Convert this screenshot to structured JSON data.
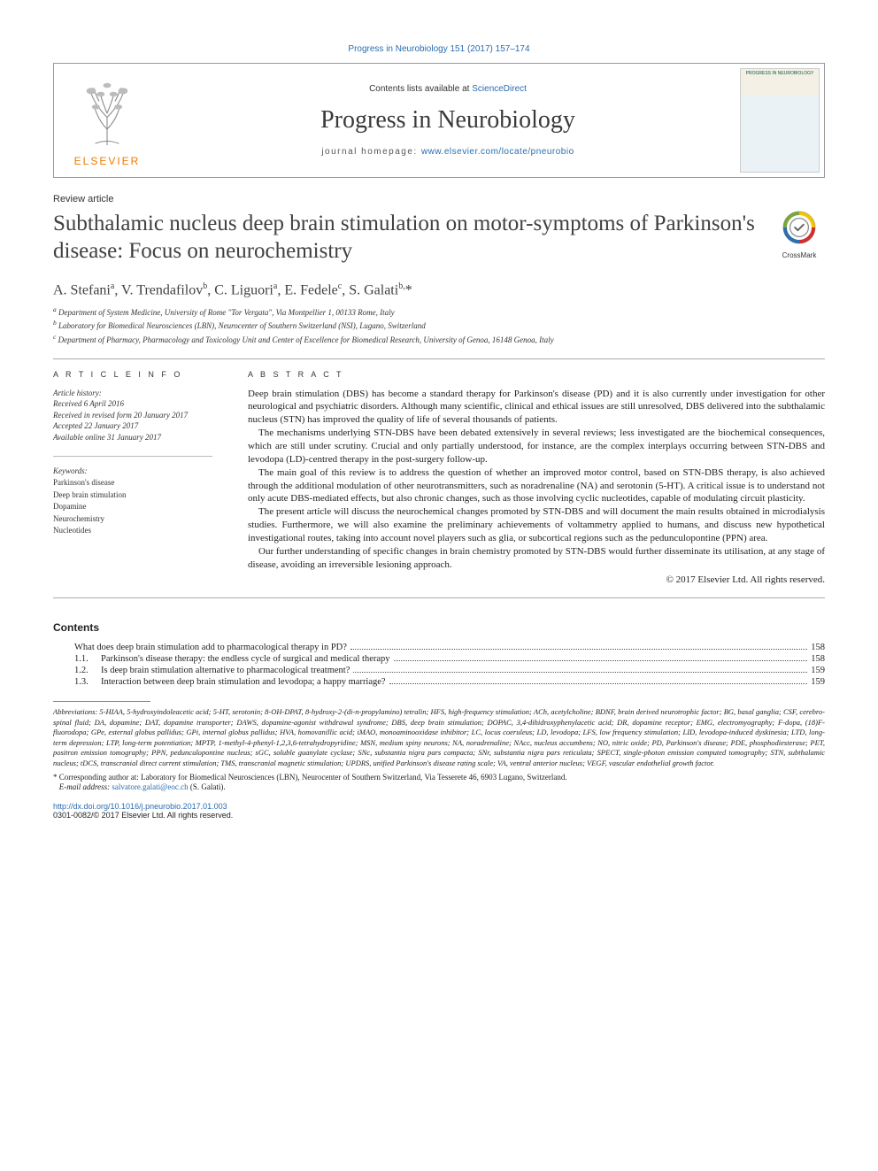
{
  "citation": "Progress in Neurobiology 151 (2017) 157–174",
  "header": {
    "contents_prefix": "Contents lists available at ",
    "contents_link": "ScienceDirect",
    "journal_name": "Progress in Neurobiology",
    "homepage_prefix": "journal homepage: ",
    "homepage_url": "www.elsevier.com/locate/pneurobio",
    "elsevier_label": "ELSEVIER",
    "cover_title": "PROGRESS IN NEUROBIOLOGY"
  },
  "article_type": "Review article",
  "title": "Subthalamic nucleus deep brain stimulation on motor-symptoms of Parkinson's disease: Focus on neurochemistry",
  "crossmark_label": "CrossMark",
  "authors_html": "A. Stefani<sup>a</sup>, V. Trendafilov<sup>b</sup>, C. Liguori<sup>a</sup>, E. Fedele<sup>c</sup>, S. Galati<sup>b,</sup>*",
  "affiliations": [
    "a Department of System Medicine, University of Rome \"Tor Vergata\", Via Montpellier 1, 00133 Rome, Italy",
    "b Laboratory for Biomedical Neurosciences (LBN), Neurocenter of Southern Switzerland (NSI), Lugano, Switzerland",
    "c Department of Pharmacy, Pharmacology and Toxicology Unit and Center of Excellence for Biomedical Research, University of Genoa, 16148 Genoa, Italy"
  ],
  "article_info_head": "A R T I C L E  I N F O",
  "abstract_head": "A B S T R A C T",
  "history_label": "Article history:",
  "history": [
    "Received 6 April 2016",
    "Received in revised form 20 January 2017",
    "Accepted 22 January 2017",
    "Available online 31 January 2017"
  ],
  "keywords_label": "Keywords:",
  "keywords": [
    "Parkinson's disease",
    "Deep brain stimulation",
    "Dopamine",
    "Neurochemistry",
    "Nucleotides"
  ],
  "abstract_paras": [
    "Deep brain stimulation (DBS) has become a standard therapy for Parkinson's disease (PD) and it is also currently under investigation for other neurological and psychiatric disorders. Although many scientific, clinical and ethical issues are still unresolved, DBS delivered into the subthalamic nucleus (STN) has improved the quality of life of several thousands of patients.",
    "The mechanisms underlying STN-DBS have been debated extensively in several reviews; less investigated are the biochemical consequences, which are still under scrutiny. Crucial and only partially understood, for instance, are the complex interplays occurring between STN-DBS and levodopa (LD)-centred therapy in the post-surgery follow-up.",
    "The main goal of this review is to address the question of whether an improved motor control, based on STN-DBS therapy, is also achieved through the additional modulation of other neurotransmitters, such as noradrenaline (NA) and serotonin (5-HT). A critical issue is to understand not only acute DBS-mediated effects, but also chronic changes, such as those involving cyclic nucleotides, capable of modulating circuit plasticity.",
    "The present article will discuss the neurochemical changes promoted by STN-DBS and will document the main results obtained in microdialysis studies. Furthermore, we will also examine the preliminary achievements of voltammetry applied to humans, and discuss new hypothetical investigational routes, taking into account novel players such as glia, or subcortical regions such as the pedunculopontine (PPN) area.",
    "Our further understanding of specific changes in brain chemistry promoted by STN-DBS would further disseminate its utilisation, at any stage of disease, avoiding an irreversible lesioning approach."
  ],
  "abstract_copyright": "© 2017 Elsevier Ltd. All rights reserved.",
  "contents_head": "Contents",
  "toc": [
    {
      "num": "",
      "text": "What does deep brain stimulation add to pharmacological therapy in PD?",
      "page": "158"
    },
    {
      "num": "1.1.",
      "text": "Parkinson's disease therapy: the endless cycle of surgical and medical therapy",
      "page": "158"
    },
    {
      "num": "1.2.",
      "text": "Is deep brain stimulation alternative to pharmacological treatment?",
      "page": "159"
    },
    {
      "num": "1.3.",
      "text": "Interaction between deep brain stimulation and levodopa; a happy marriage?",
      "page": "159"
    }
  ],
  "abbrev_lead": "Abbreviations:",
  "abbreviations": " 5-HIAA, 5-hydroxyindoleacetic acid; 5-HT, serotonin; 8-OH-DPAT, 8-hydroxy-2-(di-n-propylamino) tetralin; HFS, high-frequency stimulation; ACh, acetylcholine; BDNF, brain derived neurotrophic factor; BG, basal ganglia; CSF, cerebro-spinal fluid; DA, dopamine; DAT, dopamine transporter; DAWS, dopamine-agonist withdrawal syndrome; DBS, deep brain stimulation; DOPAC, 3,4-dihidroxyphenylacetic acid; DR, dopamine receptor; EMG, electromyography; F-dopa, (18)F-fluorodopa; GPe, esternal globus pallidus; GPi, internal globus pallidus; HVA, homovanillic acid; iMAO, monoaminooxidase inhibitor; LC, locus coeruleus; LD, levodopa; LFS, low frequency stimulation; LID, levodopa-induced dyskinesia; LTD, long-term depression; LTP, long-term potentiation; MPTP, 1-methyl-4-phenyl-1,2,3,6-tetrahydropyridine; MSN, medium spiny neurons; NA, noradrenaline; NAcc, nucleus accumbens; NO, nitric oxide; PD, Parkinson's disease; PDE, phosphodiesterase; PET, positron emission tomography; PPN, pedunculopontine nucleus; sGC, soluble guanylate cyclase; SNc, substantia nigra pars compacta; SNr, substantia nigra pars reticulata; SPECT, single-photon emission computed tomography; STN, subthalamic nucleus; tDCS, transcranial direct current stimulation; TMS, transcranial magnetic stimulation; UPDRS, unified Parkinson's disease rating scale; VA, ventral anterior nucleus; VEGF, vascular endothelial growth factor.",
  "corr_text": "* Corresponding author at: Laboratory for Biomedical Neurosciences (LBN), Neurocenter of Southern Switzerland, Via Tesserete 46, 6903 Lugano, Switzerland.",
  "email_label": "E-mail address: ",
  "email": "salvatore.galati@eoc.ch",
  "email_author": " (S. Galati).",
  "doi_url": "http://dx.doi.org/10.1016/j.pneurobio.2017.01.003",
  "issn_line": "0301-0082/© 2017 Elsevier Ltd. All rights reserved.",
  "colors": {
    "link": "#2a6cb0",
    "elsevier_orange": "#ed7b00",
    "text": "#1a1a1a",
    "grey": "#404040",
    "border": "#999999",
    "crossmark_ring": "#888888",
    "crossmark_arc1": "#f2c400",
    "crossmark_arc2": "#d42e2e",
    "crossmark_arc3": "#2e6fb0",
    "crossmark_arc4": "#7aa63a"
  }
}
